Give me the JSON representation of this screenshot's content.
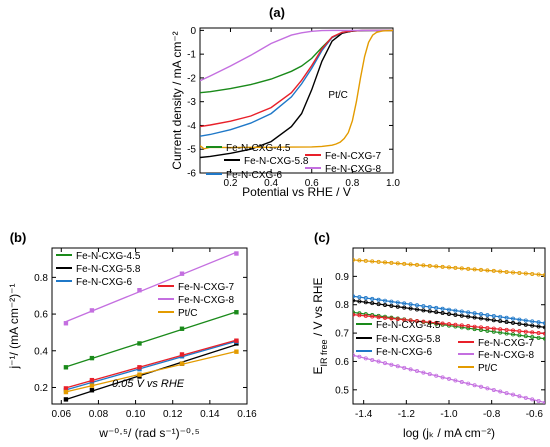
{
  "chart_data": [
    {
      "type": "line",
      "panel_label": "(a)",
      "xlabel": "Potential vs RHE / V",
      "ylabel": "Current density / mA cm⁻²",
      "xlim": [
        0.05,
        1.0
      ],
      "ylim": [
        -6,
        0.1
      ],
      "xticks": [
        0.2,
        0.4,
        0.6,
        0.8,
        1.0
      ],
      "xtick_labels": [
        "0.2",
        "0.4",
        "0.6",
        "0.8",
        "1.0"
      ],
      "yticks": [
        0,
        -1,
        -2,
        -3,
        -4,
        -5,
        -6
      ],
      "ytick_labels": [
        "0",
        "-1",
        "-2",
        "-3",
        "-4",
        "-5",
        "-6"
      ],
      "annotation": "Pt/C",
      "series": [
        {
          "name": "Fe-N-CXG-4.5",
          "color": "#1a8a1a",
          "x": [
            0.05,
            0.1,
            0.2,
            0.3,
            0.4,
            0.5,
            0.55,
            0.6,
            0.65,
            0.7,
            0.75,
            0.8,
            0.85,
            0.9,
            0.95,
            1.0
          ],
          "y": [
            -2.62,
            -2.58,
            -2.45,
            -2.28,
            -2.05,
            -1.72,
            -1.5,
            -1.18,
            -0.72,
            -0.3,
            -0.1,
            -0.03,
            -0.01,
            0,
            0,
            0
          ]
        },
        {
          "name": "Fe-N-CXG-5.8",
          "color": "#000000",
          "x": [
            0.05,
            0.1,
            0.2,
            0.3,
            0.4,
            0.5,
            0.55,
            0.6,
            0.65,
            0.7,
            0.75,
            0.8,
            0.85,
            0.9,
            0.95,
            1.0
          ],
          "y": [
            -5.35,
            -5.3,
            -5.17,
            -5.0,
            -4.68,
            -4.05,
            -3.5,
            -2.5,
            -1.3,
            -0.45,
            -0.12,
            -0.03,
            -0.01,
            0,
            0,
            0
          ]
        },
        {
          "name": "Fe-N-CXG-6",
          "color": "#1f78c8",
          "x": [
            0.05,
            0.1,
            0.2,
            0.3,
            0.4,
            0.5,
            0.55,
            0.6,
            0.65,
            0.7,
            0.75,
            0.8,
            0.85,
            0.9,
            0.95,
            1.0
          ],
          "y": [
            -4.45,
            -4.38,
            -4.18,
            -3.9,
            -3.5,
            -2.8,
            -2.25,
            -1.6,
            -0.85,
            -0.3,
            -0.08,
            -0.02,
            0,
            0,
            0,
            0
          ]
        },
        {
          "name": "Fe-N-CXG-7",
          "color": "#e8202a",
          "x": [
            0.05,
            0.1,
            0.2,
            0.3,
            0.4,
            0.5,
            0.55,
            0.6,
            0.65,
            0.7,
            0.75,
            0.8,
            0.85,
            0.9,
            0.95,
            1.0
          ],
          "y": [
            -4.05,
            -3.98,
            -3.82,
            -3.6,
            -3.25,
            -2.62,
            -2.1,
            -1.48,
            -0.78,
            -0.28,
            -0.08,
            -0.02,
            0,
            0,
            0,
            0
          ]
        },
        {
          "name": "Fe-N-CXG-8",
          "color": "#c46fe0",
          "x": [
            0.05,
            0.1,
            0.2,
            0.3,
            0.4,
            0.5,
            0.55,
            0.6,
            0.65,
            0.7,
            0.75,
            0.8,
            0.85,
            0.9,
            0.95,
            1.0
          ],
          "y": [
            -2.12,
            -1.92,
            -1.5,
            -1.05,
            -0.55,
            -0.2,
            -0.1,
            -0.04,
            -0.01,
            0,
            0,
            0,
            0,
            0,
            0,
            0
          ]
        },
        {
          "name": "Pt/C",
          "color": "#e39b00",
          "x": [
            0.05,
            0.07,
            0.1,
            0.2,
            0.3,
            0.4,
            0.5,
            0.6,
            0.65,
            0.7,
            0.72,
            0.74,
            0.76,
            0.78,
            0.8,
            0.82,
            0.84,
            0.86,
            0.88,
            0.9,
            0.92,
            0.95,
            1.0
          ],
          "y": [
            -4.85,
            -4.98,
            -4.92,
            -4.93,
            -4.92,
            -4.92,
            -4.91,
            -4.9,
            -4.88,
            -4.83,
            -4.78,
            -4.7,
            -4.55,
            -4.3,
            -3.8,
            -3.0,
            -2.0,
            -1.1,
            -0.5,
            -0.2,
            -0.08,
            -0.02,
            0
          ]
        }
      ]
    },
    {
      "type": "scatter",
      "panel_label": "(b)",
      "xlabel": "w⁻⁰·⁵/ (rad s⁻¹)⁻⁰·⁵",
      "ylabel": "j⁻¹/ (mA cm⁻²)⁻¹",
      "xlim": [
        0.055,
        0.16
      ],
      "ylim": [
        0.11,
        0.96
      ],
      "xticks": [
        0.06,
        0.08,
        0.1,
        0.12,
        0.14,
        0.16
      ],
      "xtick_labels": [
        "0.06",
        "0.08",
        "0.10",
        "0.12",
        "0.14",
        "0.16"
      ],
      "yticks": [
        0.2,
        0.4,
        0.6,
        0.8
      ],
      "ytick_labels": [
        "0.2",
        "0.4",
        "0.6",
        "0.8"
      ],
      "annotation": "0.05 V vs RHE",
      "x": [
        0.0625,
        0.0765,
        0.1021,
        0.125,
        0.1543
      ],
      "series": [
        {
          "name": "Fe-N-CXG-4.5",
          "color": "#1a8a1a",
          "values": [
            0.31,
            0.36,
            0.44,
            0.52,
            0.61
          ]
        },
        {
          "name": "Fe-N-CXG-5.8",
          "color": "#000000",
          "values": [
            0.135,
            0.185,
            0.26,
            0.33,
            0.44
          ]
        },
        {
          "name": "Fe-N-CXG-6",
          "color": "#1f78c8",
          "values": [
            0.185,
            0.23,
            0.3,
            0.37,
            0.45
          ]
        },
        {
          "name": "Fe-N-CXG-7",
          "color": "#e8202a",
          "values": [
            0.195,
            0.24,
            0.31,
            0.38,
            0.455
          ]
        },
        {
          "name": "Fe-N-CXG-8",
          "color": "#c46fe0",
          "values": [
            0.55,
            0.62,
            0.73,
            0.82,
            0.93
          ]
        },
        {
          "name": "Pt/C",
          "color": "#e39b00",
          "values": [
            0.175,
            0.21,
            0.27,
            0.33,
            0.395
          ]
        }
      ]
    },
    {
      "type": "scatter",
      "panel_label": "(c)",
      "xlabel": "log (jₖ / mA cm⁻²)",
      "ylabel": "Eᵢᴿ ᶠʳᵉᵉ / V vs RHE",
      "ylabel_main": "E",
      "ylabel_sub": "IR free",
      "ylabel_rest": " / V vs RHE",
      "xlim": [
        -1.45,
        -0.55
      ],
      "ylim": [
        0.45,
        1.0
      ],
      "xticks": [
        -1.4,
        -1.2,
        -1.0,
        -0.8,
        -0.6
      ],
      "xtick_labels": [
        "-1.4",
        "-1.2",
        "-1.0",
        "-0.8",
        "-0.6"
      ],
      "yticks": [
        0.5,
        0.6,
        0.7,
        0.8,
        0.9
      ],
      "ytick_labels": [
        "0.5",
        "0.6",
        "0.7",
        "0.8",
        "0.9"
      ],
      "series": [
        {
          "name": "Fe-N-CXG-4.5",
          "color": "#1a8a1a",
          "x0": -1.45,
          "y0": 0.773,
          "x1": -0.55,
          "y1": 0.68
        },
        {
          "name": "Fe-N-CXG-5.8",
          "color": "#000000",
          "x0": -1.45,
          "y0": 0.815,
          "x1": -0.55,
          "y1": 0.72
        },
        {
          "name": "Fe-N-CXG-6",
          "color": "#1f78c8",
          "x0": -1.45,
          "y0": 0.83,
          "x1": -0.55,
          "y1": 0.735
        },
        {
          "name": "Fe-N-CXG-7",
          "color": "#e8202a",
          "x0": -1.45,
          "y0": 0.765,
          "x1": -0.55,
          "y1": 0.698
        },
        {
          "name": "Fe-N-CXG-8",
          "color": "#c46fe0",
          "x0": -1.45,
          "y0": 0.622,
          "x1": -0.55,
          "y1": 0.455
        },
        {
          "name": "Pt/C",
          "color": "#e39b00",
          "x0": -1.45,
          "y0": 0.958,
          "x1": -0.55,
          "y1": 0.905
        }
      ]
    }
  ]
}
